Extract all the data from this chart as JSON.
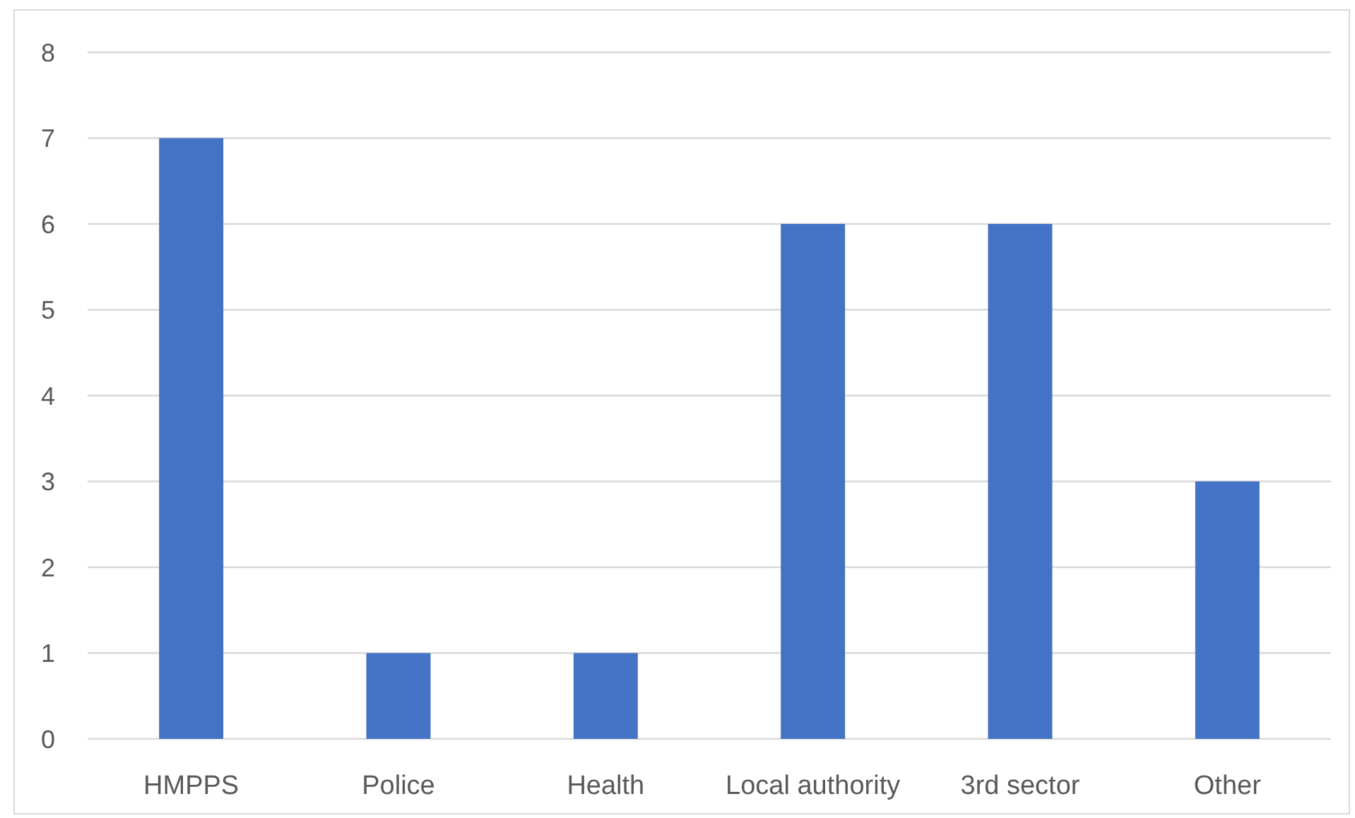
{
  "chart_data": {
    "type": "bar",
    "categories": [
      "HMPPS",
      "Police",
      "Health",
      "Local authority",
      "3rd sector",
      "Other"
    ],
    "values": [
      7,
      1,
      1,
      6,
      6,
      3
    ],
    "color": "#4472c4",
    "ylim": [
      0,
      8
    ],
    "yticks": [
      0,
      1,
      2,
      3,
      4,
      5,
      6,
      7,
      8
    ],
    "grid": "y"
  }
}
